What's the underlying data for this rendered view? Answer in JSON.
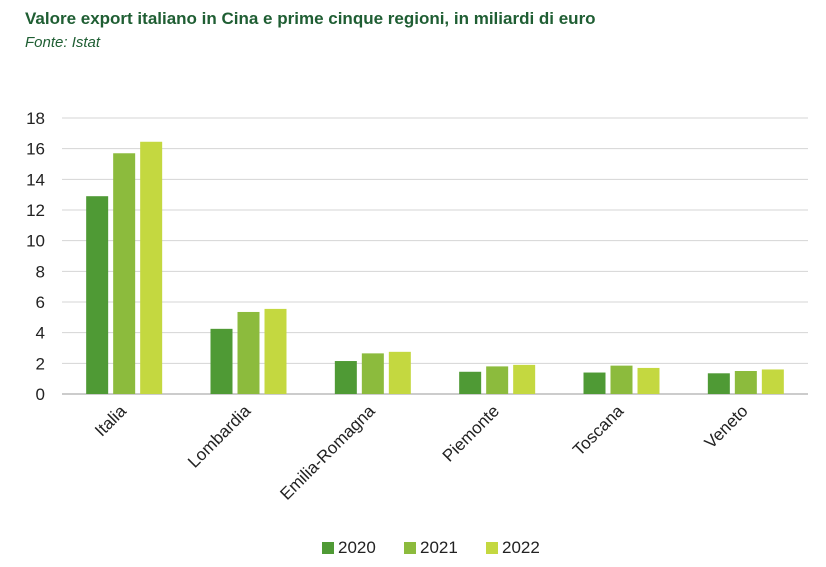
{
  "chart_data": {
    "type": "bar",
    "title": "Valore export italiano in Cina e prime cinque regioni, in miliardi di euro",
    "subtitle": "Fonte: Istat",
    "categories": [
      "Italia",
      "Lombardia",
      "Emilia-Romagna",
      "Piemonte",
      "Toscana",
      "Veneto"
    ],
    "series": [
      {
        "name": "2020",
        "color": "#4f9a35",
        "values": [
          12.9,
          4.25,
          2.15,
          1.45,
          1.4,
          1.35
        ]
      },
      {
        "name": "2021",
        "color": "#8cbb3d",
        "values": [
          15.7,
          5.35,
          2.65,
          1.8,
          1.85,
          1.5
        ]
      },
      {
        "name": "2022",
        "color": "#c4d840",
        "values": [
          16.45,
          5.55,
          2.75,
          1.9,
          1.7,
          1.6
        ]
      }
    ],
    "yticks": [
      0,
      2,
      4,
      6,
      8,
      10,
      12,
      14,
      16,
      18
    ],
    "ylim": [
      0,
      18
    ],
    "grid": true,
    "legend": "bottom"
  }
}
